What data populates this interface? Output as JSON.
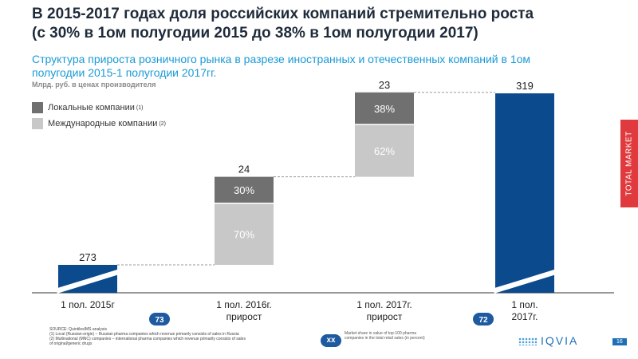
{
  "header": {
    "title_line1": "В 2015-2017 годах доля российских компаний стремительно роста",
    "title_line2": "(с 30% в 1ом полугодии 2015 до 38% в 1ом полугодии 2017)",
    "subtitle_line1": "Структура прироста розничного рынка в разрезе иностранных и отечественных компаний в 1ом",
    "subtitle_line2": "полугодии 2015-1 полугодии 2017гг.",
    "unit": "Млрд. руб. в ценах производителя"
  },
  "legend": [
    {
      "label": "Локальные компании",
      "footnote": "(1)",
      "color": "#707070"
    },
    {
      "label": "Международные компании",
      "footnote": "(2)",
      "color": "#c8c8c8"
    }
  ],
  "side_tab": "TOTAL MARKET",
  "chart_data": {
    "type": "bar",
    "subtype": "waterfall",
    "categories": [
      "1 пол. 2015г",
      "1 пол. 2016г. прирост",
      "1 пол. 2017г. прирост",
      "1 пол. 2017г."
    ],
    "category_lines": [
      [
        "1 пол. 2015г"
      ],
      [
        "1 пол. 2016г.",
        "прирост"
      ],
      [
        "1 пол. 2017г.",
        "прирост"
      ],
      [
        "1 пол.",
        "2017г."
      ]
    ],
    "totals": [
      273,
      24,
      23,
      319
    ],
    "bar_kind": [
      "total",
      "increment",
      "increment",
      "total"
    ],
    "total_color": "#0b4a8c",
    "axis_break": true,
    "increments": [
      null,
      {
        "local_share": "30%",
        "international_share": "70%",
        "local": 30,
        "international": 70
      },
      {
        "local_share": "38%",
        "international_share": "62%",
        "local": 38,
        "international": 62
      },
      null
    ],
    "badges": [
      {
        "category_index": 0,
        "text": "73"
      },
      {
        "category_index": 3,
        "text": "72"
      }
    ]
  },
  "footer": {
    "source": "SOURCE: QuintilesIMS analysis",
    "note1": "(1)     Local (Russian-origin) – Russian pharma companies which revenue primarily consists of sales in Russia",
    "note2": "(2)     Multinational (MNC) companies – international pharma companies which revenue primarily consists of sales",
    "note3": "         of original/generic drugs",
    "badge_xx": "xx",
    "badge_note": "Market share in value of top-100 pharma companies in the total retail sales (in percent)",
    "logo": "IQVIA",
    "page_number": "16"
  }
}
